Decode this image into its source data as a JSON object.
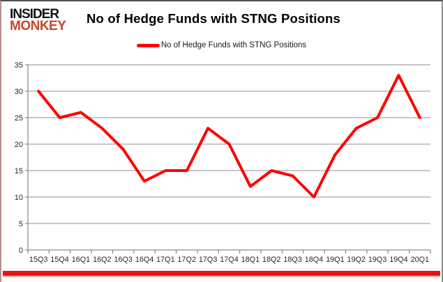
{
  "logo": {
    "line1": "INSIDER",
    "line2": "MONKEY"
  },
  "header": {
    "title": "No of Hedge Funds with STNG Positions"
  },
  "legend": {
    "label": "No of Hedge Funds with STNG Positions"
  },
  "colors": {
    "line": "#ff0000",
    "logo_accent": "#c7452c",
    "gridline": "#8f8f8f",
    "axis": "#707070",
    "tick_label": "#262626",
    "bottom_bar": "#ec1111"
  },
  "chart_data": {
    "type": "line",
    "title": "No of Hedge Funds with STNG Positions",
    "legend_entries": [
      "No of Hedge Funds with STNG Positions"
    ],
    "legend_position": "top-center",
    "categories": [
      "15Q3",
      "15Q4",
      "16Q1",
      "16Q2",
      "16Q3",
      "16Q4",
      "17Q1",
      "17Q2",
      "17Q3",
      "17Q4",
      "18Q1",
      "18Q2",
      "18Q3",
      "18Q4",
      "19Q1",
      "19Q2",
      "19Q3",
      "19Q4",
      "20Q1"
    ],
    "series": [
      {
        "name": "No of Hedge Funds with STNG Positions",
        "values": [
          30,
          25,
          26,
          23,
          19,
          13,
          15,
          15,
          23,
          20,
          12,
          15,
          14,
          10,
          18,
          23,
          25,
          33,
          25
        ]
      }
    ],
    "xlabel": "",
    "ylabel": "",
    "ylim": [
      0,
      35
    ],
    "ytick_step": 5,
    "grid": true
  }
}
